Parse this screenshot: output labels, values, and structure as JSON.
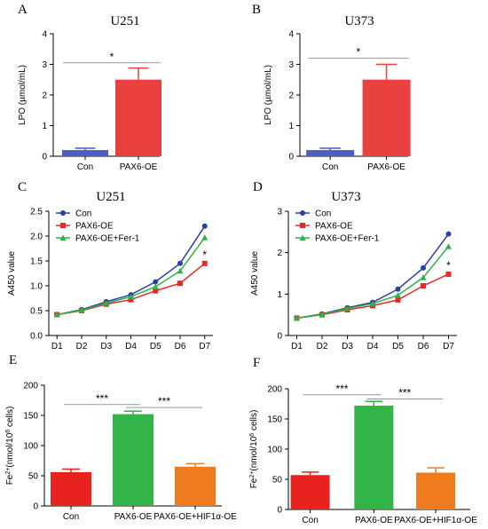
{
  "chart_data": [
    {
      "letter": "A",
      "type": "bar",
      "title": "U251",
      "ylabel": "LPO (µmol/mL)",
      "ylim": [
        0,
        4
      ],
      "yticks": [
        "0",
        "1",
        "2",
        "3",
        "4"
      ],
      "categories": [
        "Con",
        "PAX6-OE"
      ],
      "values": [
        0.2,
        2.5
      ],
      "errors": [
        0.06,
        0.38
      ],
      "colors": [
        "#4a5fc1",
        "#e8413f"
      ],
      "significance": [
        {
          "label": "*",
          "from": 0,
          "to": 1,
          "y": 3.05
        }
      ]
    },
    {
      "letter": "B",
      "type": "bar",
      "title": "U373",
      "ylabel": "LPO (µmol/mL)",
      "ylim": [
        0,
        4
      ],
      "yticks": [
        "0",
        "1",
        "2",
        "3",
        "4"
      ],
      "categories": [
        "Con",
        "PAX6-OE"
      ],
      "values": [
        0.2,
        2.5
      ],
      "errors": [
        0.06,
        0.5
      ],
      "colors": [
        "#4a5fc1",
        "#e8413f"
      ],
      "significance": [
        {
          "label": "*",
          "from": 0,
          "to": 1,
          "y": 3.2
        }
      ]
    },
    {
      "letter": "C",
      "type": "line",
      "title": "U251",
      "ylabel": "A450 value",
      "ylim": [
        0,
        2.5
      ],
      "yticks": [
        "0.0",
        "0.5",
        "1.0",
        "1.5",
        "2.0",
        "2.5"
      ],
      "categories": [
        "D1",
        "D2",
        "D3",
        "D4",
        "D5",
        "D6",
        "D7"
      ],
      "series": [
        {
          "name": "Con",
          "color": "#2b3fa8",
          "marker": "circle",
          "values": [
            0.42,
            0.52,
            0.68,
            0.82,
            1.08,
            1.45,
            2.2
          ]
        },
        {
          "name": "PAX6-OE",
          "color": "#e32a25",
          "marker": "square",
          "values": [
            0.42,
            0.5,
            0.63,
            0.72,
            0.9,
            1.05,
            1.45
          ]
        },
        {
          "name": "PAX6-OE+Fer-1",
          "color": "#2cb24a",
          "marker": "triangle",
          "values": [
            0.42,
            0.51,
            0.65,
            0.78,
            0.98,
            1.3,
            1.97
          ]
        }
      ],
      "legend": "top-left",
      "annotation": "*"
    },
    {
      "letter": "D",
      "type": "line",
      "title": "U373",
      "ylabel": "A450 value",
      "ylim": [
        0,
        3
      ],
      "yticks": [
        "0",
        "1",
        "2",
        "3"
      ],
      "categories": [
        "D1",
        "D2",
        "D3",
        "D4",
        "D5",
        "D6",
        "D7"
      ],
      "series": [
        {
          "name": "Con",
          "color": "#2b3fa8",
          "marker": "circle",
          "values": [
            0.42,
            0.52,
            0.67,
            0.8,
            1.12,
            1.63,
            2.45
          ]
        },
        {
          "name": "PAX6-OE",
          "color": "#e32a25",
          "marker": "square",
          "values": [
            0.42,
            0.5,
            0.62,
            0.72,
            0.86,
            1.2,
            1.48
          ]
        },
        {
          "name": "PAX6-OE+Fer-1",
          "color": "#2cb24a",
          "marker": "triangle",
          "values": [
            0.42,
            0.51,
            0.65,
            0.77,
            0.97,
            1.4,
            2.15
          ]
        }
      ],
      "legend": "top-left",
      "annotation": "*"
    },
    {
      "letter": "E",
      "type": "bar",
      "title": "",
      "ylabel": "Fe2+(nmol/106 cells)",
      "ylim": [
        0,
        200
      ],
      "yticks": [
        "0",
        "50",
        "100",
        "150",
        "200"
      ],
      "categories": [
        "Con",
        "PAX6-OE",
        "PAX6-OE+HIF1α-OE"
      ],
      "values": [
        56,
        152,
        65
      ],
      "errors": [
        5,
        5,
        5
      ],
      "colors": [
        "#e8221f",
        "#33b448",
        "#f07a1e"
      ],
      "significance": [
        {
          "label": "***",
          "from": 0,
          "to": 1,
          "y": 168
        },
        {
          "label": "***",
          "from": 1,
          "to": 2,
          "y": 163
        }
      ]
    },
    {
      "letter": "F",
      "type": "bar",
      "title": "",
      "ylabel": "Fe2+(nmol/106 cells)",
      "ylim": [
        0,
        200
      ],
      "yticks": [
        "0",
        "50",
        "100",
        "150",
        "200"
      ],
      "categories": [
        "Con",
        "PAX6-OE",
        "PAX6-OE+HIF1α-OE"
      ],
      "values": [
        57,
        172,
        61
      ],
      "errors": [
        5,
        7,
        8
      ],
      "colors": [
        "#e8221f",
        "#33b448",
        "#f07a1e"
      ],
      "significance": [
        {
          "label": "***",
          "from": 0,
          "to": 1,
          "y": 190
        },
        {
          "label": "***",
          "from": 1,
          "to": 2,
          "y": 183
        }
      ]
    }
  ]
}
